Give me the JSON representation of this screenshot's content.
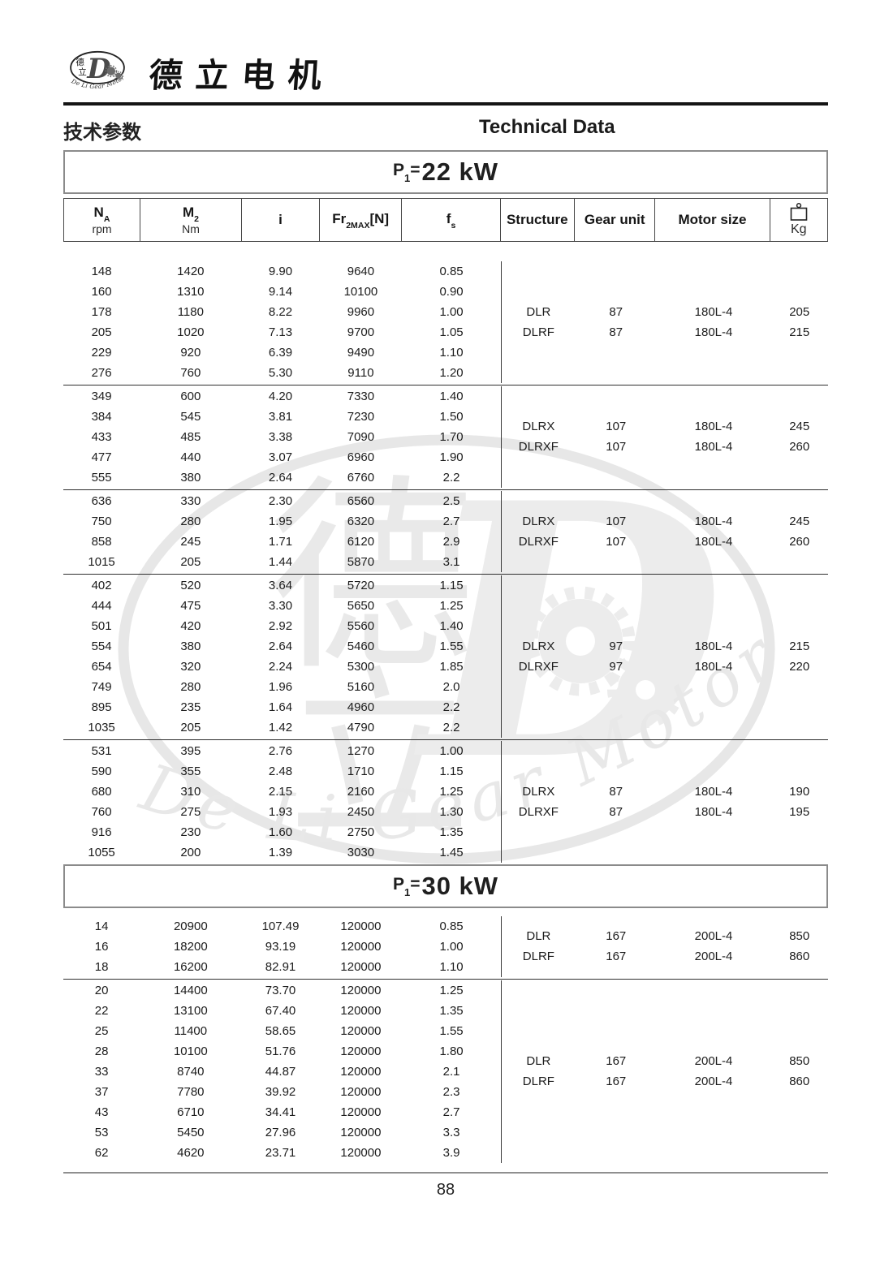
{
  "brand": {
    "name": "德立电机",
    "logo": {
      "zh_top": "德",
      "zh_bottom": "立",
      "letter": "D",
      "arc_text": "De Li Gear Motor"
    }
  },
  "page_titles": {
    "zh": "技术参数",
    "en": "Technical Data"
  },
  "colors": {
    "text": "#1c1c1c",
    "rule_black": "#141414",
    "box_border_gray": "#8b8b8b",
    "table_line": "#3a3a3a",
    "watermark_gray": "#e9e9e9"
  },
  "table": {
    "columns": [
      {
        "base": "N",
        "sub": "A",
        "unit": "rpm"
      },
      {
        "base": "M",
        "sub": "2",
        "unit": "Nm"
      },
      {
        "base": "i"
      },
      {
        "base": "Fr",
        "sub": "2MAX",
        "after": "[N]"
      },
      {
        "base": "f",
        "sub": "s"
      },
      {
        "base": "Structure"
      },
      {
        "base": "Gear unit"
      },
      {
        "base": "Motor size"
      },
      {
        "base": "Kg",
        "icon": "weight-icon"
      }
    ],
    "sections": [
      {
        "title": {
          "prefix": "P",
          "sub": "1",
          "eq": "=",
          "value": "22 kW"
        },
        "show_columns": true,
        "groups": [
          {
            "rows": [
              [
                "148",
                "1420",
                "9.90",
                "9640",
                "0.85"
              ],
              [
                "160",
                "1310",
                "9.14",
                "10100",
                "0.90"
              ],
              [
                "178",
                "1180",
                "8.22",
                "9960",
                "1.00"
              ],
              [
                "205",
                "1020",
                "7.13",
                "9700",
                "1.05"
              ],
              [
                "229",
                "920",
                "6.39",
                "9490",
                "1.10"
              ],
              [
                "276",
                "760",
                "5.30",
                "9110",
                "1.20"
              ]
            ],
            "structure": [
              [
                "DLR",
                "87",
                "180L-4",
                "205"
              ],
              [
                "DLRF",
                "87",
                "180L-4",
                "215"
              ]
            ]
          },
          {
            "rows": [
              [
                "349",
                "600",
                "4.20",
                "7330",
                "1.40"
              ],
              [
                "384",
                "545",
                "3.81",
                "7230",
                "1.50"
              ],
              [
                "433",
                "485",
                "3.38",
                "7090",
                "1.70"
              ],
              [
                "477",
                "440",
                "3.07",
                "6960",
                "1.90"
              ],
              [
                "555",
                "380",
                "2.64",
                "6760",
                "2.2"
              ]
            ],
            "structure": [
              [
                "DLRX",
                "107",
                "180L-4",
                "245"
              ],
              [
                "DLRXF",
                "107",
                "180L-4",
                "260"
              ]
            ]
          },
          {
            "rows": [
              [
                "636",
                "330",
                "2.30",
                "6560",
                "2.5"
              ],
              [
                "750",
                "280",
                "1.95",
                "6320",
                "2.7"
              ],
              [
                "858",
                "245",
                "1.71",
                "6120",
                "2.9"
              ],
              [
                "1015",
                "205",
                "1.44",
                "5870",
                "3.1"
              ]
            ],
            "structure": [
              [
                "DLRX",
                "107",
                "180L-4",
                "245"
              ],
              [
                "DLRXF",
                "107",
                "180L-4",
                "260"
              ]
            ]
          },
          {
            "rows": [
              [
                "402",
                "520",
                "3.64",
                "5720",
                "1.15"
              ],
              [
                "444",
                "475",
                "3.30",
                "5650",
                "1.25"
              ],
              [
                "501",
                "420",
                "2.92",
                "5560",
                "1.40"
              ],
              [
                "554",
                "380",
                "2.64",
                "5460",
                "1.55"
              ],
              [
                "654",
                "320",
                "2.24",
                "5300",
                "1.85"
              ],
              [
                "749",
                "280",
                "1.96",
                "5160",
                "2.0"
              ],
              [
                "895",
                "235",
                "1.64",
                "4960",
                "2.2"
              ],
              [
                "1035",
                "205",
                "1.42",
                "4790",
                "2.2"
              ]
            ],
            "structure": [
              [
                "DLRX",
                "97",
                "180L-4",
                "215"
              ],
              [
                "DLRXF",
                "97",
                "180L-4",
                "220"
              ]
            ]
          },
          {
            "rows": [
              [
                "531",
                "395",
                "2.76",
                "1270",
                "1.00"
              ],
              [
                "590",
                "355",
                "2.48",
                "1710",
                "1.15"
              ],
              [
                "680",
                "310",
                "2.15",
                "2160",
                "1.25"
              ],
              [
                "760",
                "275",
                "1.93",
                "2450",
                "1.30"
              ],
              [
                "916",
                "230",
                "1.60",
                "2750",
                "1.35"
              ],
              [
                "1055",
                "200",
                "1.39",
                "3030",
                "1.45"
              ]
            ],
            "structure": [
              [
                "DLRX",
                "87",
                "180L-4",
                "190"
              ],
              [
                "DLRXF",
                "87",
                "180L-4",
                "195"
              ]
            ]
          }
        ]
      },
      {
        "title": {
          "prefix": "P",
          "sub": "1",
          "eq": "=",
          "value": "30 kW"
        },
        "show_columns": false,
        "groups": [
          {
            "rows": [
              [
                "14",
                "20900",
                "107.49",
                "120000",
                "0.85"
              ],
              [
                "16",
                "18200",
                "93.19",
                "120000",
                "1.00"
              ],
              [
                "18",
                "16200",
                "82.91",
                "120000",
                "1.10"
              ]
            ],
            "structure": [
              [
                "DLR",
                "167",
                "200L-4",
                "850"
              ],
              [
                "DLRF",
                "167",
                "200L-4",
                "860"
              ]
            ]
          },
          {
            "rows": [
              [
                "20",
                "14400",
                "73.70",
                "120000",
                "1.25"
              ],
              [
                "22",
                "13100",
                "67.40",
                "120000",
                "1.35"
              ],
              [
                "25",
                "11400",
                "58.65",
                "120000",
                "1.55"
              ],
              [
                "28",
                "10100",
                "51.76",
                "120000",
                "1.80"
              ],
              [
                "33",
                "8740",
                "44.87",
                "120000",
                "2.1"
              ],
              [
                "37",
                "7780",
                "39.92",
                "120000",
                "2.3"
              ],
              [
                "43",
                "6710",
                "34.41",
                "120000",
                "2.7"
              ],
              [
                "53",
                "5450",
                "27.96",
                "120000",
                "3.3"
              ],
              [
                "62",
                "4620",
                "23.71",
                "120000",
                "3.9"
              ]
            ],
            "structure": [
              [
                "DLR",
                "167",
                "200L-4",
                "850"
              ],
              [
                "DLRF",
                "167",
                "200L-4",
                "860"
              ]
            ]
          }
        ]
      }
    ]
  },
  "footer": {
    "page_number": "88"
  }
}
